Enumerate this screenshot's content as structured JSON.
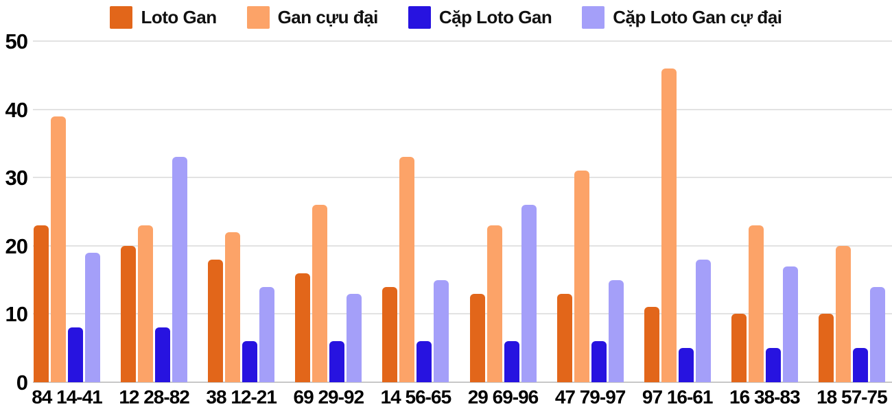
{
  "chart_data": {
    "type": "bar",
    "title": "",
    "xlabel": "",
    "ylabel": "",
    "categories": [
      "84 14-41",
      "12 28-82",
      "38 12-21",
      "69 29-92",
      "14 56-65",
      "29 69-96",
      "47 79-97",
      "97 16-61",
      "16 38-83",
      "18 57-75"
    ],
    "series": [
      {
        "name": "Loto Gan",
        "color": "#e2661a",
        "values": [
          23,
          20,
          18,
          16,
          14,
          13,
          13,
          11,
          10,
          10
        ]
      },
      {
        "name": "Gan cựu đại",
        "color": "#fca368",
        "values": [
          39,
          23,
          22,
          26,
          33,
          23,
          31,
          46,
          23,
          20
        ]
      },
      {
        "name": "Cặp Loto Gan",
        "color": "#2713e0",
        "values": [
          8,
          8,
          6,
          6,
          6,
          6,
          6,
          5,
          5,
          5
        ]
      },
      {
        "name": "Cặp Loto Gan cự đại",
        "color": "#a49ff9",
        "values": [
          19,
          33,
          14,
          13,
          15,
          26,
          15,
          18,
          17,
          14
        ]
      }
    ],
    "ylim": [
      0,
      50
    ],
    "yticks": [
      0,
      10,
      20,
      30,
      40,
      50
    ],
    "grid": true,
    "legend_position": "top-center"
  },
  "colors": {
    "background": "#ffffff",
    "gridline": "#e2e2e2",
    "zero_line": "#c7c7c7",
    "text": "#000000"
  }
}
